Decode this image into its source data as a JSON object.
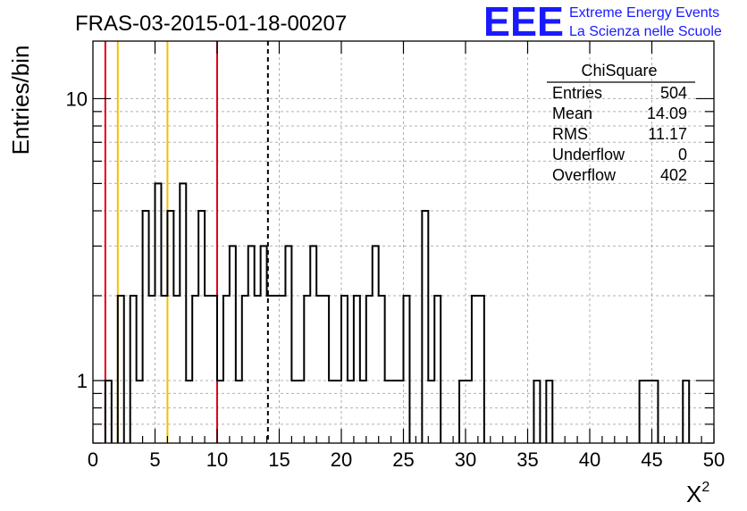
{
  "chart_data": {
    "type": "bar",
    "title": "FRAS-03-2015-01-18-00207",
    "xlabel": "X",
    "xlabel_superscript": "2",
    "ylabel": "Entries/bin",
    "xlim": [
      0,
      50
    ],
    "ylim": [
      0.6,
      16
    ],
    "yscale": "log",
    "grid": true,
    "bin_width": 0.5,
    "x_ticks": [
      0,
      5,
      10,
      15,
      20,
      25,
      30,
      35,
      40,
      45,
      50
    ],
    "y_ticks": [
      1,
      10
    ],
    "bins_x_start": [
      1.0,
      2.0,
      3.0,
      3.5,
      4.0,
      4.5,
      5.0,
      5.5,
      6.0,
      6.5,
      7.0,
      7.5,
      8.0,
      8.5,
      9.0,
      9.5,
      10.0,
      10.5,
      11.0,
      11.5,
      12.0,
      12.5,
      13.0,
      13.5,
      14.0,
      14.5,
      15.0,
      15.5,
      16.0,
      16.5,
      17.0,
      17.5,
      18.0,
      18.5,
      19.0,
      19.5,
      20.0,
      20.5,
      21.0,
      21.5,
      22.0,
      22.5,
      23.0,
      23.5,
      24.0,
      24.5,
      25.0,
      26.5,
      27.0,
      27.5,
      29.5,
      30.0,
      30.5,
      31.0,
      35.5,
      36.5,
      44.0,
      44.5,
      45.0,
      47.5
    ],
    "bins_values": [
      1,
      2,
      2,
      1,
      4,
      2,
      5,
      2,
      4,
      2,
      5,
      1,
      2,
      4,
      2,
      2,
      1,
      2,
      3,
      1,
      2,
      3,
      2,
      3,
      2,
      2,
      2,
      3,
      1,
      1,
      2,
      3,
      2,
      2,
      1,
      1,
      2,
      1,
      2,
      1,
      2,
      3,
      2,
      1,
      1,
      1,
      2,
      4,
      1,
      2,
      1,
      1,
      2,
      2,
      1,
      1,
      1,
      1,
      1,
      1
    ],
    "vertical_lines": [
      {
        "x": 1,
        "color": "#e0001a",
        "style": "solid"
      },
      {
        "x": 2,
        "color": "#f5c000",
        "style": "solid"
      },
      {
        "x": 6,
        "color": "#f5c000",
        "style": "solid"
      },
      {
        "x": 10,
        "color": "#e0001a",
        "style": "solid"
      },
      {
        "x": 14.09,
        "color": "#000000",
        "style": "dashed"
      }
    ],
    "stats_box": {
      "title": "ChiSquare",
      "rows": [
        {
          "label": "Entries",
          "value": "504"
        },
        {
          "label": "Mean",
          "value": "14.09"
        },
        {
          "label": "RMS",
          "value": "11.17"
        },
        {
          "label": "Underflow",
          "value": "0"
        },
        {
          "label": "Overflow",
          "value": "402"
        }
      ]
    }
  },
  "logo": {
    "letters": "EEE",
    "line1": "Extreme Energy Events",
    "line2": "La Scienza nelle Scuole",
    "color": "#1a1aff"
  }
}
